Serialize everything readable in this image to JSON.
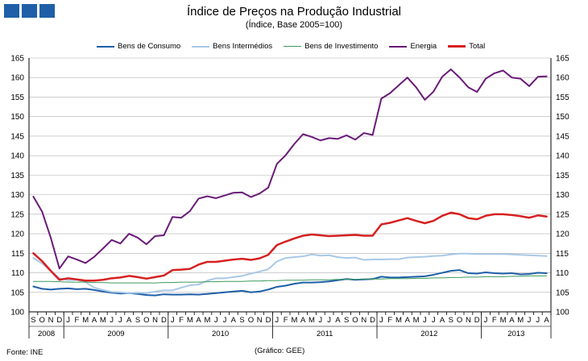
{
  "header": {
    "title": "Índice de Preços na Produção Industrial",
    "subtitle": "(Índice,  Base 2005=100)"
  },
  "footer": {
    "source": "Fonte: INE",
    "credit": "(Gráfico:  GEE)"
  },
  "colors": {
    "logo": "#1f5fa8",
    "grid": "#b0b0b0",
    "axis": "#000000"
  },
  "chart_data": {
    "type": "line",
    "title": "Índice de Preços na Produção Industrial",
    "subtitle": "(Índice,  Base 2005=100)",
    "ylim": [
      100,
      165
    ],
    "yticks": [
      100,
      105,
      110,
      115,
      120,
      125,
      130,
      135,
      140,
      145,
      150,
      155,
      160,
      165
    ],
    "grid": true,
    "legend_position": "top",
    "x": [
      "2008-09",
      "2008-10",
      "2008-11",
      "2008-12",
      "2009-01",
      "2009-02",
      "2009-03",
      "2009-04",
      "2009-05",
      "2009-06",
      "2009-07",
      "2009-08",
      "2009-09",
      "2009-10",
      "2009-11",
      "2009-12",
      "2010-01",
      "2010-02",
      "2010-03",
      "2010-04",
      "2010-05",
      "2010-06",
      "2010-07",
      "2010-08",
      "2010-09",
      "2010-10",
      "2010-11",
      "2010-12",
      "2011-01",
      "2011-02",
      "2011-03",
      "2011-04",
      "2011-05",
      "2011-06",
      "2011-07",
      "2011-08",
      "2011-09",
      "2011-10",
      "2011-11",
      "2011-12",
      "2012-01",
      "2012-02",
      "2012-03",
      "2012-04",
      "2012-05",
      "2012-06",
      "2012-07",
      "2012-08",
      "2012-09",
      "2012-10",
      "2012-11",
      "2012-12",
      "2013-01",
      "2013-02",
      "2013-03",
      "2013-04",
      "2013-05",
      "2013-06",
      "2013-07",
      "2013-08"
    ],
    "month_labels": [
      "S",
      "O",
      "N",
      "D",
      "J",
      "F",
      "M",
      "A",
      "M",
      "J",
      "J",
      "A",
      "S",
      "O",
      "N",
      "D",
      "J",
      "F",
      "M",
      "A",
      "M",
      "J",
      "J",
      "A",
      "S",
      "O",
      "N",
      "D",
      "J",
      "F",
      "M",
      "A",
      "M",
      "J",
      "J",
      "A",
      "S",
      "O",
      "N",
      "D",
      "J",
      "F",
      "M",
      "A",
      "M",
      "J",
      "J",
      "A",
      "S",
      "O",
      "N",
      "D",
      "J",
      "F",
      "M",
      "A",
      "M",
      "J",
      "J",
      "A"
    ],
    "year_labels": [
      {
        "label": "2008",
        "start": 0,
        "end": 3
      },
      {
        "label": "2009",
        "start": 4,
        "end": 15
      },
      {
        "label": "2010",
        "start": 16,
        "end": 27
      },
      {
        "label": "2011",
        "start": 28,
        "end": 39
      },
      {
        "label": "2012",
        "start": 40,
        "end": 51
      },
      {
        "label": "2013",
        "start": 52,
        "end": 59
      }
    ],
    "series": [
      {
        "name": "Bens de Consumo",
        "color": "#1f5fa8",
        "width": 2,
        "values": [
          106.5,
          105.9,
          105.7,
          105.9,
          106.0,
          105.8,
          105.9,
          105.6,
          105.2,
          104.9,
          104.7,
          104.8,
          104.6,
          104.3,
          104.2,
          104.5,
          104.4,
          104.4,
          104.5,
          104.4,
          104.6,
          104.8,
          105.0,
          105.2,
          105.4,
          105.0,
          105.2,
          105.7,
          106.4,
          106.7,
          107.2,
          107.5,
          107.5,
          107.6,
          107.8,
          108.1,
          108.4,
          108.2,
          108.3,
          108.4,
          109.0,
          108.8,
          108.8,
          108.9,
          109.0,
          109.1,
          109.5,
          110.0,
          110.5,
          110.7,
          109.9,
          109.8,
          110.1,
          109.9,
          109.8,
          109.9,
          109.6,
          109.7,
          110.0,
          109.9
        ]
      },
      {
        "name": "Bens Intermédios",
        "color": "#a9c8e6",
        "width": 2,
        "values": [
          113.8,
          112.4,
          110.5,
          108.6,
          108.1,
          108.2,
          107.6,
          106.2,
          105.6,
          105.1,
          105.0,
          104.8,
          104.9,
          104.8,
          105.2,
          105.5,
          105.5,
          106.2,
          106.8,
          107.0,
          108.0,
          108.6,
          108.6,
          108.9,
          109.2,
          109.8,
          110.3,
          110.9,
          112.9,
          113.8,
          114.0,
          114.2,
          114.7,
          114.4,
          114.5,
          114.0,
          113.8,
          113.9,
          113.3,
          113.4,
          113.4,
          113.5,
          113.5,
          113.9,
          114.0,
          114.1,
          114.3,
          114.4,
          114.7,
          114.9,
          114.9,
          114.8,
          114.8,
          114.8,
          114.8,
          114.7,
          114.6,
          114.5,
          114.4,
          114.3
        ]
      },
      {
        "name": "Bens de Investimento",
        "color": "#3c9a5c",
        "width": 1,
        "values": [
          107.8,
          107.8,
          107.8,
          107.7,
          107.6,
          107.6,
          107.6,
          107.5,
          107.5,
          107.4,
          107.4,
          107.4,
          107.4,
          107.4,
          107.4,
          107.5,
          107.5,
          107.6,
          107.6,
          107.6,
          107.7,
          107.7,
          107.8,
          107.8,
          107.8,
          107.9,
          107.9,
          108.0,
          108.0,
          108.1,
          108.1,
          108.1,
          108.2,
          108.2,
          108.2,
          108.3,
          108.3,
          108.3,
          108.4,
          108.4,
          108.4,
          108.5,
          108.5,
          108.5,
          108.6,
          108.6,
          108.7,
          108.7,
          108.8,
          108.8,
          108.9,
          108.9,
          109.0,
          109.0,
          109.0,
          109.1,
          109.1,
          109.2,
          109.2,
          109.2
        ]
      },
      {
        "name": "Energia",
        "color": "#6a1b78",
        "width": 2,
        "values": [
          129.5,
          125.7,
          119.0,
          111.1,
          114.2,
          113.4,
          112.5,
          114.1,
          116.2,
          118.4,
          117.5,
          120.0,
          119.0,
          117.3,
          119.4,
          119.6,
          124.3,
          124.1,
          125.8,
          129.0,
          129.6,
          129.1,
          129.8,
          130.5,
          130.6,
          129.4,
          130.3,
          131.8,
          137.9,
          140.1,
          143.0,
          145.5,
          144.8,
          143.9,
          144.5,
          144.3,
          145.2,
          144.1,
          145.8,
          145.3,
          154.6,
          156.0,
          158.0,
          160.0,
          157.5,
          154.3,
          156.4,
          160.2,
          162.1,
          160.0,
          157.5,
          156.3,
          159.7,
          161.1,
          161.8,
          160.0,
          159.7,
          157.8,
          160.2,
          160.3
        ]
      },
      {
        "name": "Total",
        "color": "#d62020",
        "width": 2.5,
        "values": [
          115.0,
          113.0,
          110.5,
          108.2,
          108.6,
          108.3,
          108.0,
          108.0,
          108.2,
          108.6,
          108.8,
          109.2,
          108.9,
          108.5,
          108.9,
          109.3,
          110.7,
          110.8,
          111.0,
          112.1,
          112.8,
          112.8,
          113.1,
          113.4,
          113.6,
          113.3,
          113.7,
          114.6,
          117.1,
          118.0,
          118.8,
          119.5,
          119.8,
          119.6,
          119.4,
          119.5,
          119.6,
          119.7,
          119.5,
          119.5,
          122.4,
          122.8,
          123.4,
          124.0,
          123.3,
          122.7,
          123.3,
          124.6,
          125.4,
          125.0,
          124.0,
          123.7,
          124.6,
          125.0,
          125.0,
          124.8,
          124.5,
          124.1,
          124.7,
          124.4
        ]
      }
    ]
  }
}
